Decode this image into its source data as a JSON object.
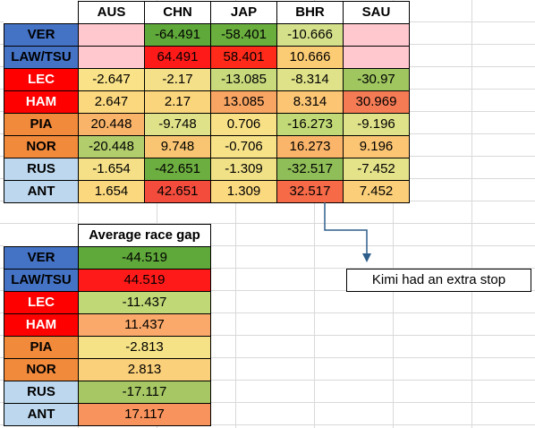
{
  "races": [
    "AUS",
    "CHN",
    "JAP",
    "BHR",
    "SAU"
  ],
  "drivers": [
    {
      "name": "VER",
      "bg": "#4472c4",
      "fg": "#000000"
    },
    {
      "name": "LAW/TSU",
      "bg": "#4472c4",
      "fg": "#000000"
    },
    {
      "name": "LEC",
      "bg": "#ff0000",
      "fg": "#ffffff"
    },
    {
      "name": "HAM",
      "bg": "#ff0000",
      "fg": "#ffffff"
    },
    {
      "name": "PIA",
      "bg": "#f28a3c",
      "fg": "#000000"
    },
    {
      "name": "NOR",
      "bg": "#f28a3c",
      "fg": "#000000"
    },
    {
      "name": "RUS",
      "bg": "#bdd7ee",
      "fg": "#000000"
    },
    {
      "name": "ANT",
      "bg": "#bdd7ee",
      "fg": "#000000"
    }
  ],
  "gaps": [
    [
      "",
      "-64.491",
      "-58.401",
      "-10.666",
      ""
    ],
    [
      "",
      "64.491",
      "58.401",
      "10.666",
      ""
    ],
    [
      "-2.647",
      "-2.17",
      "-13.085",
      "-8.314",
      "-30.97"
    ],
    [
      "2.647",
      "2.17",
      "13.085",
      "8.314",
      "30.969"
    ],
    [
      "20.448",
      "-9.748",
      "0.706",
      "-16.273",
      "-9.196"
    ],
    [
      "-20.448",
      "9.748",
      "-0.706",
      "16.273",
      "9.196"
    ],
    [
      "-1.654",
      "-42.651",
      "-1.309",
      "-32.517",
      "-7.452"
    ],
    [
      "1.654",
      "42.651",
      "1.309",
      "32.517",
      "7.452"
    ]
  ],
  "gap_colors": [
    [
      "#ffc7ce",
      "#5fa83a",
      "#6aae3e",
      "#d4e08a",
      "#ffc7ce"
    ],
    [
      "#ffc7ce",
      "#ff1a1a",
      "#ff2a1a",
      "#fccc74",
      "#ffc7ce"
    ],
    [
      "#f9e287",
      "#f5e08a",
      "#c8da7c",
      "#dfe289",
      "#9fc65f"
    ],
    [
      "#fbd87e",
      "#fbd57c",
      "#f8a462",
      "#fbc574",
      "#f57b55"
    ],
    [
      "#f9b46a",
      "#e0e28a",
      "#f8e086",
      "#c2d977",
      "#dfe289"
    ],
    [
      "#b2cd6c",
      "#f9c572",
      "#f7e288",
      "#fab56a",
      "#fbc574"
    ],
    [
      "#f5e087",
      "#6dae40",
      "#f0e086",
      "#8fbd57",
      "#e5e38a"
    ],
    [
      "#fbd87e",
      "#f44c3c",
      "#fbd97f",
      "#f66a48",
      "#fbcf79"
    ]
  ],
  "average": {
    "header": "Average race gap",
    "values": [
      "-44.519",
      "44.519",
      "-11.437",
      "11.437",
      "-2.813",
      "2.813",
      "-17.117",
      "17.117"
    ],
    "colors": [
      "#5fa83a",
      "#ff1a1a",
      "#c0d876",
      "#fba96a",
      "#f6e286",
      "#fbd07a",
      "#a6c763",
      "#f8935d"
    ]
  },
  "note": "Kimi had an extra stop"
}
